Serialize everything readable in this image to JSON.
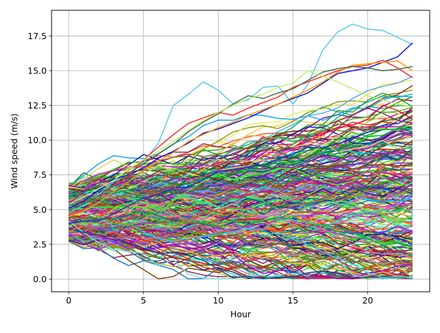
{
  "chart_data": {
    "type": "line",
    "title": "",
    "xlabel": "Hour",
    "ylabel": "Wind speed (m/s)",
    "xlim": [
      -1.15,
      24.15
    ],
    "ylim": [
      -0.92,
      19.35
    ],
    "xticks": [
      0,
      5,
      10,
      15,
      20
    ],
    "xtick_labels": [
      "0",
      "5",
      "10",
      "15",
      "20"
    ],
    "yticks": [
      0,
      2.5,
      5,
      7.5,
      10,
      12.5,
      15,
      17.5
    ],
    "ytick_labels": [
      "0.0",
      "2.5",
      "5.0",
      "7.5",
      "10.0",
      "12.5",
      "15.0",
      "17.5"
    ],
    "grid": true,
    "legend": "none",
    "series_count": 300,
    "hours": [
      0,
      1,
      2,
      3,
      4,
      5,
      6,
      7,
      8,
      9,
      10,
      11,
      12,
      13,
      14,
      15,
      16,
      17,
      18,
      19,
      20,
      21,
      22,
      23
    ],
    "start_range": [
      2.7,
      6.9
    ],
    "series": [
      {
        "color": "#5bc8f0",
        "values": [
          4.8,
          5.3,
          6.1,
          7.0,
          7.6,
          8.4,
          9.8,
          12.5,
          13.3,
          14.2,
          13.6,
          12.6,
          12.9,
          13.8,
          13.9,
          12.6,
          14.0,
          16.5,
          17.8,
          18.35,
          18.0,
          17.9,
          17.4,
          16.9
        ]
      },
      {
        "color": "#1010e0",
        "values": [
          5.1,
          5.6,
          6.4,
          7.2,
          7.5,
          8.0,
          8.7,
          9.2,
          9.8,
          10.5,
          10.8,
          11.2,
          11.6,
          12.1,
          12.6,
          13.0,
          13.4,
          14.1,
          14.8,
          15.0,
          15.2,
          15.6,
          16.0,
          17.0
        ]
      },
      {
        "color": "#ff2a2a",
        "values": [
          4.6,
          5.0,
          5.8,
          6.7,
          7.4,
          8.6,
          9.5,
          10.4,
          11.2,
          11.6,
          12.0,
          11.8,
          12.3,
          12.7,
          13.1,
          13.8,
          14.2,
          14.6,
          15.0,
          15.3,
          15.4,
          15.75,
          15.2,
          14.5
        ]
      },
      {
        "color": "#ff9900",
        "values": [
          4.5,
          4.9,
          5.5,
          6.3,
          7.0,
          7.8,
          8.5,
          9.1,
          9.9,
          10.4,
          10.9,
          11.3,
          11.8,
          12.2,
          12.6,
          13.1,
          13.6,
          14.2,
          14.9,
          15.4,
          15.5,
          15.6,
          15.7,
          15.0
        ]
      },
      {
        "color": "#4a6b4a",
        "values": [
          5.0,
          5.4,
          6.0,
          6.8,
          7.6,
          8.3,
          9.0,
          9.7,
          10.6,
          11.3,
          11.9,
          12.6,
          13.2,
          13.0,
          13.4,
          13.7,
          14.3,
          14.9,
          15.15,
          15.3,
          15.2,
          15.0,
          15.1,
          15.3
        ]
      },
      {
        "color": "#c0f070",
        "values": [
          5.4,
          5.9,
          6.5,
          7.1,
          7.9,
          8.6,
          9.2,
          9.9,
          10.7,
          11.4,
          12.0,
          12.5,
          13.0,
          13.3,
          13.8,
          14.1,
          15.0,
          14.6,
          14.2,
          13.7,
          13.2,
          12.9,
          12.6,
          12.4
        ]
      }
    ]
  }
}
